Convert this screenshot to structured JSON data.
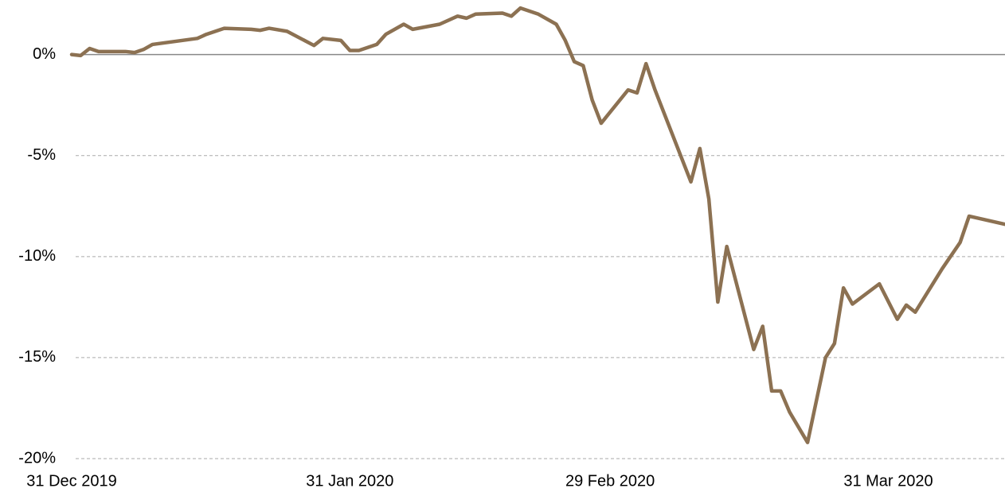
{
  "chart_data": {
    "type": "line",
    "x": [
      "2019-12-31",
      "2020-01-01",
      "2020-01-02",
      "2020-01-03",
      "2020-01-06",
      "2020-01-07",
      "2020-01-08",
      "2020-01-09",
      "2020-01-14",
      "2020-01-15",
      "2020-01-17",
      "2020-01-20",
      "2020-01-21",
      "2020-01-22",
      "2020-01-24",
      "2020-01-27",
      "2020-01-28",
      "2020-01-30",
      "2020-01-31",
      "2020-02-01",
      "2020-02-03",
      "2020-02-04",
      "2020-02-06",
      "2020-02-07",
      "2020-02-10",
      "2020-02-12",
      "2020-02-13",
      "2020-02-14",
      "2020-02-17",
      "2020-02-18",
      "2020-02-19",
      "2020-02-21",
      "2020-02-23",
      "2020-02-24",
      "2020-02-25",
      "2020-02-26",
      "2020-02-27",
      "2020-02-28",
      "2020-03-02",
      "2020-03-03",
      "2020-03-04",
      "2020-03-05",
      "2020-03-09",
      "2020-03-10",
      "2020-03-11",
      "2020-03-12",
      "2020-03-13",
      "2020-03-16",
      "2020-03-17",
      "2020-03-18",
      "2020-03-19",
      "2020-03-20",
      "2020-03-22",
      "2020-03-24",
      "2020-03-25",
      "2020-03-26",
      "2020-03-27",
      "2020-03-30",
      "2020-04-01",
      "2020-04-02",
      "2020-04-03",
      "2020-04-06",
      "2020-04-08",
      "2020-04-09",
      "2020-04-13"
    ],
    "series": [
      {
        "color": "#8c7152",
        "values": [
          0,
          -0.05,
          0.3,
          0.15,
          0.15,
          0.1,
          0.25,
          0.5,
          0.8,
          1.0,
          1.3,
          1.25,
          1.2,
          1.3,
          1.15,
          0.45,
          0.8,
          0.7,
          0.2,
          0.2,
          0.5,
          1.0,
          1.5,
          1.25,
          1.5,
          1.9,
          1.8,
          2.0,
          2.05,
          1.9,
          2.3,
          2.0,
          1.5,
          0.7,
          -0.35,
          -0.55,
          -2.25,
          -3.4,
          -1.75,
          -1.9,
          -0.45,
          -1.75,
          -6.3,
          -4.65,
          -7.15,
          -12.25,
          -9.5,
          -14.6,
          -13.45,
          -16.65,
          -16.65,
          -17.7,
          -19.2,
          -15.0,
          -14.3,
          -11.55,
          -12.35,
          -11.35,
          -13.1,
          -12.4,
          -12.75,
          -10.6,
          -9.3,
          -8.0,
          -8.4
        ]
      }
    ],
    "xlim": [
      "2019-12-31",
      "2020-04-13"
    ],
    "xticks": [
      {
        "value": "2019-12-31",
        "label": "31 Dec 2019"
      },
      {
        "value": "2020-01-31",
        "label": "31 Jan 2020"
      },
      {
        "value": "2020-02-29",
        "label": "29 Feb 2020"
      },
      {
        "value": "2020-03-31",
        "label": "31 Mar 2020"
      }
    ],
    "ylim": [
      -20,
      2.7
    ],
    "yticks": [
      {
        "value": 0,
        "label": "0%"
      },
      {
        "value": -5,
        "label": "-5%"
      },
      {
        "value": -10,
        "label": "-10%"
      },
      {
        "value": -15,
        "label": "-15%"
      },
      {
        "value": -20,
        "label": "-20%"
      }
    ],
    "grid": true
  }
}
